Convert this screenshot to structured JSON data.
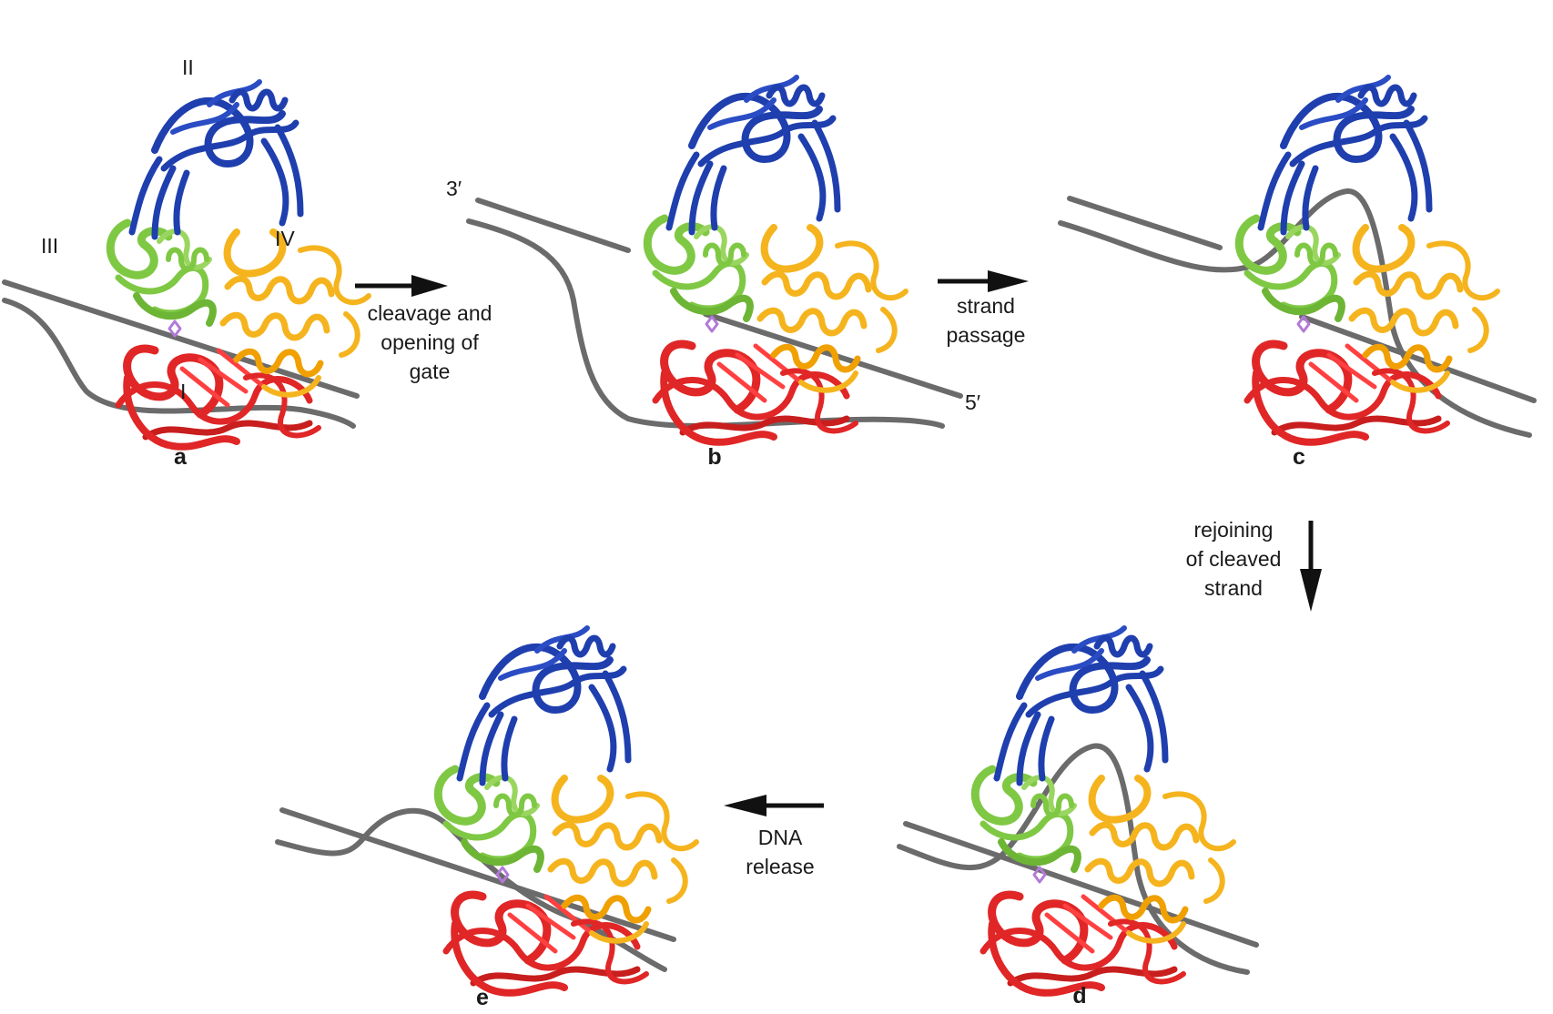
{
  "colors": {
    "domain_I": "#e02626",
    "domain_II": "#1f3fae",
    "domain_III": "#7fc844",
    "domain_IV": "#f5b41e",
    "dna": "#6b6b6b",
    "arrow": "#111111"
  },
  "domains": {
    "I": "I",
    "II": "II",
    "III": "III",
    "IV": "IV"
  },
  "strand_ends": {
    "three_prime": "3′",
    "five_prime": "5′"
  },
  "panels": {
    "a": "a",
    "b": "b",
    "c": "c",
    "d": "d",
    "e": "e"
  },
  "steps": {
    "cleavage": [
      "cleavage and",
      "opening of",
      "gate"
    ],
    "strand_passage": [
      "strand",
      "passage"
    ],
    "rejoining": [
      "rejoining",
      "of cleaved",
      "strand"
    ],
    "dna_release": [
      "DNA",
      "release"
    ]
  }
}
